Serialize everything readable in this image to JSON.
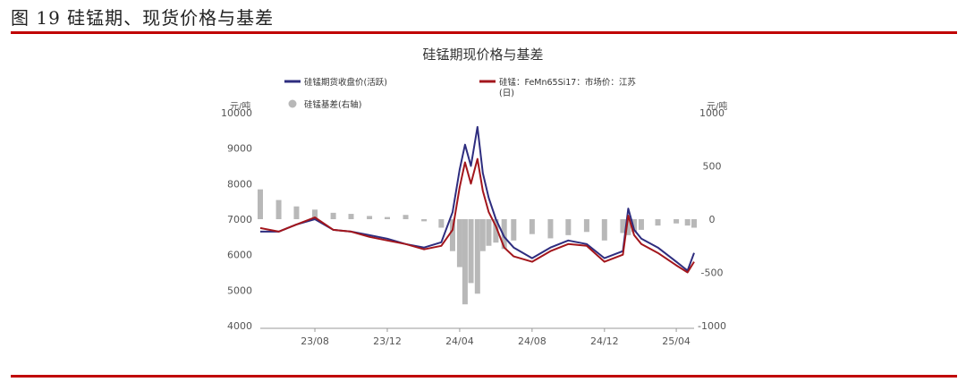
{
  "figure_header": "图 19  硅锰期、现货价格与基差",
  "colors": {
    "futures": "#2e2d7f",
    "spot": "#a3161c",
    "basis": "#b8b8b8",
    "rule": "#c00000"
  },
  "chart_data": {
    "type": "line+bar",
    "title": "硅锰期现价格与基差",
    "left_unit": "元/吨",
    "right_unit": "元/吨",
    "yleft": {
      "lim": [
        4000,
        10000
      ],
      "ticks": [
        "10000",
        "9000",
        "8000",
        "7000",
        "6000",
        "5000",
        "4000"
      ]
    },
    "yright": {
      "lim": [
        -1000,
        1000
      ],
      "ticks": [
        "1000",
        "500",
        "0",
        "-500",
        "-1000"
      ]
    },
    "x_ticks": [
      "23/08",
      "23/12",
      "24/04",
      "24/08",
      "24/12",
      "25/04"
    ],
    "x_range": [
      "2023-05",
      "2025-05"
    ],
    "legend": [
      {
        "key": "futures",
        "label": "硅锰期货收盘价(活跃)"
      },
      {
        "key": "spot",
        "label": "硅锰：FeMn65Si17：市场价：江苏",
        "label2": "(日)"
      },
      {
        "key": "basis",
        "label": "硅锰基差(右轴)"
      }
    ],
    "series": [
      {
        "name": "硅锰期货收盘价(活跃)",
        "type": "line",
        "axis": "left",
        "x": [
          "2023-05",
          "2023-06",
          "2023-07",
          "2023-08",
          "2023-09",
          "2023-10",
          "2023-11",
          "2023-12",
          "2024-01",
          "2024-02",
          "2024-03",
          "2024-03-20",
          "2024-04",
          "2024-04-10",
          "2024-04-20",
          "2024-05",
          "2024-05-10",
          "2024-05-20",
          "2024-06",
          "2024-06-15",
          "2024-07",
          "2024-08",
          "2024-09",
          "2024-10",
          "2024-11",
          "2024-12",
          "2025-01",
          "2025-01-10",
          "2025-01-20",
          "2025-02",
          "2025-03",
          "2025-04",
          "2025-04-20",
          "2025-05"
        ],
        "values": [
          6650,
          6650,
          6850,
          7000,
          6700,
          6650,
          6550,
          6450,
          6300,
          6200,
          6350,
          7200,
          8400,
          9100,
          8500,
          9600,
          8300,
          7600,
          7000,
          6500,
          6200,
          5900,
          6200,
          6400,
          6300,
          5900,
          6100,
          7300,
          6700,
          6450,
          6200,
          5800,
          5550,
          6050
        ]
      },
      {
        "name": "硅锰：FeMn65Si17：市场价：江苏(日)",
        "type": "line",
        "axis": "left",
        "x": [
          "2023-05",
          "2023-06",
          "2023-07",
          "2023-08",
          "2023-09",
          "2023-10",
          "2023-11",
          "2023-12",
          "2024-01",
          "2024-02",
          "2024-03",
          "2024-03-20",
          "2024-04",
          "2024-04-10",
          "2024-04-20",
          "2024-05",
          "2024-05-10",
          "2024-05-20",
          "2024-06",
          "2024-06-15",
          "2024-07",
          "2024-08",
          "2024-09",
          "2024-10",
          "2024-11",
          "2024-12",
          "2025-01",
          "2025-01-10",
          "2025-01-20",
          "2025-02",
          "2025-03",
          "2025-04",
          "2025-04-20",
          "2025-05"
        ],
        "values": [
          6750,
          6650,
          6850,
          7050,
          6700,
          6650,
          6500,
          6400,
          6300,
          6150,
          6250,
          6700,
          7900,
          8600,
          8000,
          8700,
          7800,
          7200,
          6800,
          6200,
          5950,
          5800,
          6100,
          6300,
          6250,
          5800,
          6000,
          7100,
          6550,
          6300,
          6050,
          5700,
          5500,
          5800
        ]
      },
      {
        "name": "硅锰基差(右轴)",
        "type": "bar",
        "axis": "right",
        "x": [
          "2023-05",
          "2023-06",
          "2023-07",
          "2023-08",
          "2023-09",
          "2023-10",
          "2023-11",
          "2023-12",
          "2024-01",
          "2024-02",
          "2024-03",
          "2024-03-20",
          "2024-04",
          "2024-04-10",
          "2024-04-20",
          "2024-05",
          "2024-05-10",
          "2024-05-20",
          "2024-06",
          "2024-06-15",
          "2024-07",
          "2024-08",
          "2024-09",
          "2024-10",
          "2024-11",
          "2024-12",
          "2025-01",
          "2025-01-10",
          "2025-01-20",
          "2025-02",
          "2025-03",
          "2025-04",
          "2025-04-20",
          "2025-05"
        ],
        "values": [
          280,
          180,
          120,
          90,
          60,
          50,
          30,
          20,
          40,
          -20,
          -80,
          -300,
          -450,
          -800,
          -600,
          -700,
          -300,
          -250,
          -220,
          -280,
          -200,
          -140,
          -180,
          -150,
          -120,
          -200,
          -130,
          -150,
          -120,
          -100,
          -60,
          -40,
          -60,
          -80
        ]
      }
    ]
  }
}
